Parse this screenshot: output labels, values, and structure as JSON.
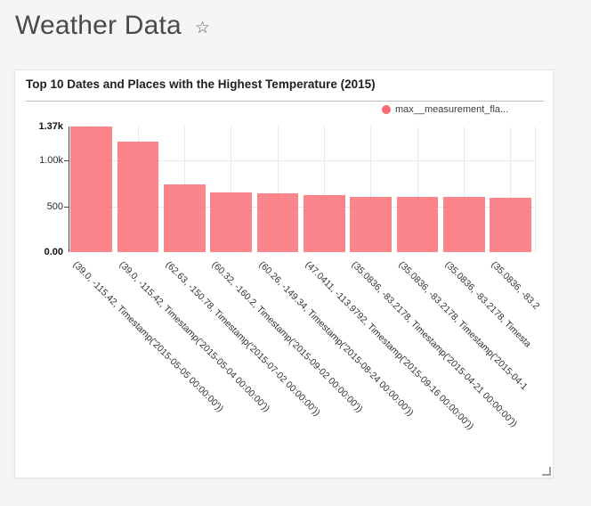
{
  "page": {
    "title": "Weather Data",
    "favorite_icon": "star-outline"
  },
  "chart_card": {
    "title": "Top 10 Dates and Places with the Highest Temperature (2015)",
    "legend": {
      "label": "max__measurement_fla...",
      "color": "#fa6a70"
    }
  },
  "chart_data": {
    "type": "bar",
    "title": "Top 10 Dates and Places with the Highest Temperature (2015)",
    "series": [
      {
        "name": "max__measurement_fla...",
        "color": "#fa6a70",
        "values": [
          1370,
          1205,
          738,
          651,
          644,
          618,
          606,
          602,
          600,
          597
        ]
      }
    ],
    "categories": [
      "(39.0, -115.42, Timestamp('2015-05-05 00:00:00'))",
      "(39.0, -115.42, Timestamp('2015-05-04 00:00:00'))",
      "(62.63, -150.78, Timestamp('2015-07-02 00:00:00'))",
      "(60.32, -160.2, Timestamp('2015-09-02 00:00:00'))",
      "(60.26, -149.34, Timestamp('2015-08-24 00:00:00'))",
      "(47.0411, -113.9792, Timestamp('2015-09-16 00:00:00'))",
      "(35.0836, -83.2178, Timestamp('2015-04-21 00:00:00'))",
      "(35.0836, -83.2178, Timestamp('2015-04-1",
      "(35.0836, -83.2178, Timesta",
      "(35.0836, -83.2"
    ],
    "x_labels_clipped_at_chart_edge": true,
    "x_tick_rotation_deg": 45,
    "ylim": [
      0,
      1370
    ],
    "yticks": [
      {
        "value": 0,
        "label": "0.00",
        "bold": true
      },
      {
        "value": 500,
        "label": "500",
        "bold": false
      },
      {
        "value": 1000,
        "label": "1.00k",
        "bold": false
      },
      {
        "value": 1370,
        "label": "1.37k",
        "bold": true
      }
    ],
    "grid": true,
    "legend_position": "top-right",
    "xlabel": "",
    "ylabel": ""
  }
}
